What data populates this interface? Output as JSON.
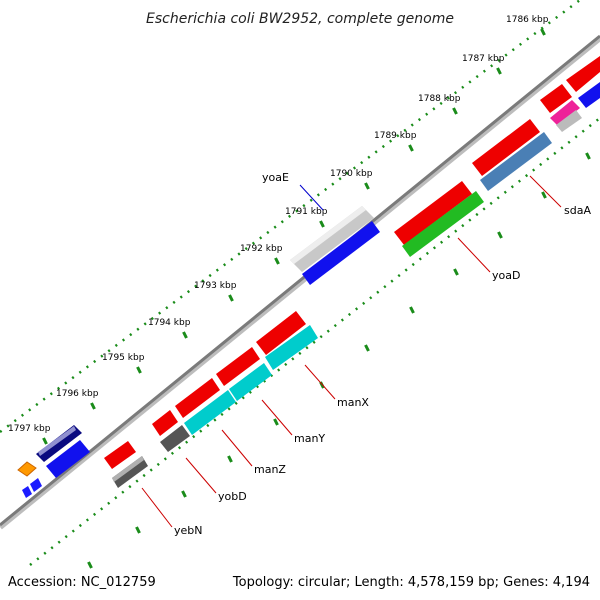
{
  "title": "Escherichia coli BW2952, complete genome",
  "accession": "Accession: NC_012759",
  "summary": "Topology: circular; Length: 4,578,159 bp; Genes: 4,194",
  "colors": {
    "backbone": "#808080",
    "tick": "#1a8c1a",
    "label_red": "#cc0000",
    "label_blue": "#0000cc"
  },
  "ticks": [
    {
      "label": "1786 kbp"
    },
    {
      "label": "1787 kbp"
    },
    {
      "label": "1788 kbp"
    },
    {
      "label": "1789 kbp"
    },
    {
      "label": "1790 kbp"
    },
    {
      "label": "1791 kbp"
    },
    {
      "label": "1792 kbp"
    },
    {
      "label": "1793 kbp"
    },
    {
      "label": "1794 kbp"
    },
    {
      "label": "1795 kbp"
    },
    {
      "label": "1796 kbp"
    },
    {
      "label": "1797 kbp"
    }
  ],
  "gene_labels": [
    {
      "name": "yoaE",
      "color": "#0000cc"
    },
    {
      "name": "sdaA",
      "color": "#cc0000"
    },
    {
      "name": "yoaD",
      "color": "#cc0000"
    },
    {
      "name": "manX",
      "color": "#cc0000"
    },
    {
      "name": "manY",
      "color": "#cc0000"
    },
    {
      "name": "manZ",
      "color": "#cc0000"
    },
    {
      "name": "yobD",
      "color": "#cc0000"
    },
    {
      "name": "yebN",
      "color": "#cc0000"
    }
  ]
}
